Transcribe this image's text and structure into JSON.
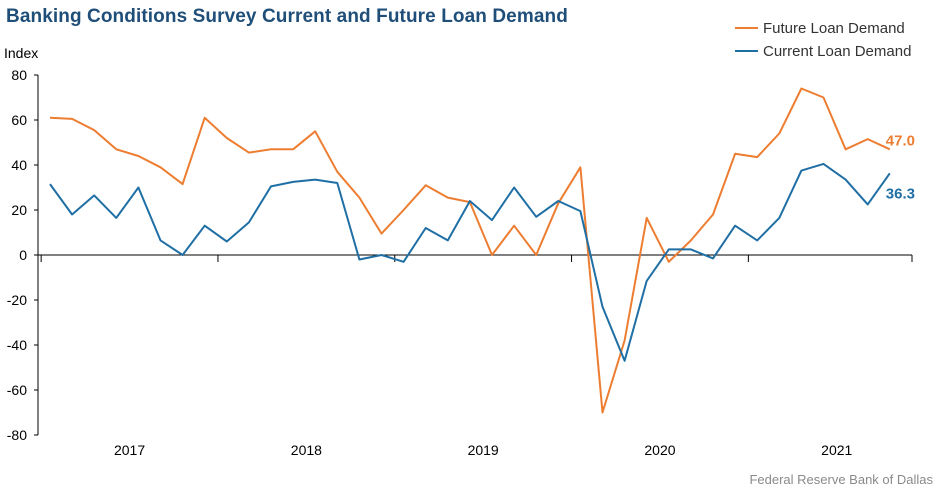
{
  "title": "Banking Conditions Survey Current and Future Loan Demand",
  "source": "Federal Reserve Bank of Dallas",
  "chart_data": {
    "type": "line",
    "title": "Banking Conditions Survey Current and Future Loan Demand",
    "ylabel": "Index",
    "xlabel": "",
    "ylim": [
      -80,
      80
    ],
    "yticks": [
      80,
      60,
      40,
      20,
      0,
      -20,
      -40,
      -60,
      -80
    ],
    "ytick_labels": [
      "80",
      "60",
      "40",
      "20",
      "0",
      "-20",
      "-40",
      "-60",
      "-80"
    ],
    "x_tick_labels": [
      "2017",
      "2018",
      "2019",
      "2020",
      "2021"
    ],
    "legend_position": "top-right",
    "grid": false,
    "start_period": "2016-Q3",
    "series": [
      {
        "name": "Future Loan Demand",
        "color": "#ed7d31",
        "end_label": "47.0",
        "values": [
          61.0,
          60.5,
          55.5,
          47.0,
          44.0,
          39.0,
          31.5,
          61.0,
          52.0,
          45.5,
          47.0,
          47.0,
          55.0,
          37.0,
          25.5,
          9.5,
          20.0,
          31.0,
          25.5,
          23.5,
          0.0,
          13.0,
          0.0,
          23.0,
          39.0,
          -70.0,
          -38.0,
          16.5,
          -3.0,
          6.5,
          18.0,
          45.0,
          43.5,
          54.0,
          74.0,
          70.0,
          47.0,
          51.5,
          47.0
        ]
      },
      {
        "name": "Current Loan Demand",
        "color": "#1f6fa5",
        "end_label": "36.3",
        "values": [
          31.5,
          18.0,
          26.5,
          16.5,
          30.0,
          6.5,
          0.0,
          13.0,
          6.0,
          14.5,
          30.5,
          32.5,
          33.5,
          32.0,
          -2.0,
          0.0,
          -3.0,
          12.0,
          6.5,
          24.0,
          15.5,
          30.0,
          17.0,
          24.0,
          19.5,
          -23.0,
          -47.0,
          -11.5,
          2.5,
          2.5,
          -1.5,
          13.0,
          6.5,
          16.5,
          37.5,
          40.5,
          33.5,
          22.5,
          36.3
        ]
      }
    ]
  }
}
